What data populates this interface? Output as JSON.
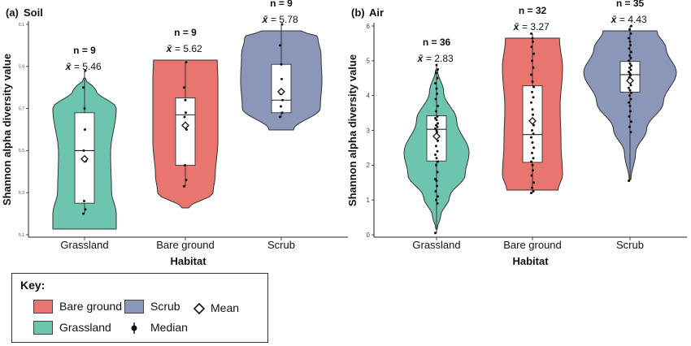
{
  "chart_data": [
    {
      "type": "violin",
      "panel_label": "(a)",
      "title": "Soil",
      "xlabel": "Habitat",
      "ylabel": "Shannon alpha diversity value",
      "ylim": [
        5.1,
        6.1
      ],
      "yticks": [
        "5.1",
        "5.3",
        "5.5",
        "5.7",
        "5.9",
        "6.1"
      ],
      "categories": [
        "Grassland",
        "Bare ground",
        "Scrub"
      ],
      "groups": [
        {
          "category": "Grassland",
          "n_label": "n = 9",
          "mean_label": "= 5.46",
          "color": "#6dc5b0",
          "n": 9,
          "mean": 5.46,
          "median": 5.5,
          "q1": 5.25,
          "q3": 5.68,
          "min": 5.2,
          "max": 5.88,
          "points": [
            5.2,
            5.22,
            5.26,
            5.45,
            5.5,
            5.6,
            5.7,
            5.8,
            5.88
          ]
        },
        {
          "category": "Bare ground",
          "n_label": "n = 9",
          "mean_label": "= 5.62",
          "color": "#e8766f",
          "n": 9,
          "mean": 5.62,
          "median": 5.67,
          "q1": 5.43,
          "q3": 5.75,
          "min": 5.33,
          "max": 5.92,
          "points": [
            5.33,
            5.36,
            5.43,
            5.6,
            5.66,
            5.68,
            5.74,
            5.8,
            5.92
          ]
        },
        {
          "category": "Scrub",
          "n_label": "n = 9",
          "mean_label": "= 5.78",
          "color": "#8b97b8",
          "n": 9,
          "mean": 5.78,
          "median": 5.74,
          "q1": 5.68,
          "q3": 5.91,
          "min": 5.66,
          "max": 6.1,
          "points": [
            5.66,
            5.68,
            5.71,
            5.74,
            5.77,
            5.84,
            5.91,
            6.0,
            6.1
          ]
        }
      ]
    },
    {
      "type": "violin",
      "panel_label": "(b)",
      "title": "Air",
      "xlabel": "Habitat",
      "ylabel": "Shannon alpha diversity value",
      "ylim": [
        0,
        6
      ],
      "yticks": [
        "0",
        "1",
        "2",
        "3",
        "4",
        "5",
        "6"
      ],
      "categories": [
        "Grassland",
        "Bare ground",
        "Scrub"
      ],
      "groups": [
        {
          "category": "Grassland",
          "n_label": "n = 36",
          "mean_label": "= 2.83",
          "color": "#6dc5b0",
          "n": 36,
          "mean": 2.83,
          "median": 3.03,
          "q1": 2.12,
          "q3": 3.42,
          "min": 0.05,
          "max": 4.88,
          "points": [
            0.05,
            0.9,
            1.0,
            1.1,
            1.25,
            1.4,
            1.55,
            1.6,
            1.8,
            2.0,
            2.1,
            2.2,
            2.3,
            2.4,
            2.55,
            2.7,
            2.85,
            2.95,
            3.0,
            3.05,
            3.1,
            3.15,
            3.2,
            3.3,
            3.35,
            3.4,
            3.55,
            3.7,
            3.9,
            4.05,
            4.2,
            4.35,
            4.5,
            4.65,
            4.75,
            4.88
          ]
        },
        {
          "category": "Bare ground",
          "n_label": "n = 32",
          "mean_label": "= 3.27",
          "color": "#e8766f",
          "n": 32,
          "mean": 3.27,
          "median": 2.88,
          "q1": 2.08,
          "q3": 4.28,
          "min": 1.2,
          "max": 5.78,
          "points": [
            1.2,
            1.25,
            1.35,
            1.5,
            1.7,
            1.85,
            2.0,
            2.1,
            2.2,
            2.35,
            2.5,
            2.65,
            2.8,
            2.9,
            3.0,
            3.15,
            3.3,
            3.45,
            3.6,
            3.8,
            3.95,
            4.1,
            4.25,
            4.4,
            4.6,
            4.8,
            5.0,
            5.2,
            5.4,
            5.55,
            5.65,
            5.78
          ]
        },
        {
          "category": "Scrub",
          "n_label": "n = 35",
          "mean_label": "= 4.43",
          "color": "#8b97b8",
          "n": 35,
          "mean": 4.43,
          "median": 4.6,
          "q1": 4.1,
          "q3": 4.98,
          "min": 1.55,
          "max": 6.0,
          "points": [
            1.55,
            2.95,
            3.1,
            3.25,
            3.4,
            3.55,
            3.7,
            3.8,
            3.9,
            4.0,
            4.08,
            4.15,
            4.22,
            4.3,
            4.38,
            4.45,
            4.52,
            4.58,
            4.63,
            4.68,
            4.74,
            4.8,
            4.86,
            4.92,
            5.0,
            5.08,
            5.15,
            5.25,
            5.35,
            5.45,
            5.55,
            5.65,
            5.78,
            5.9,
            6.0
          ]
        }
      ]
    }
  ],
  "key": {
    "title": "Key:",
    "items": [
      {
        "label": "Bare ground",
        "color": "#e8766f"
      },
      {
        "label": "Grassland",
        "color": "#6dc5b0"
      },
      {
        "label": "Scrub",
        "color": "#8b97b8"
      },
      {
        "label": "Median"
      },
      {
        "label": "Mean"
      }
    ]
  }
}
